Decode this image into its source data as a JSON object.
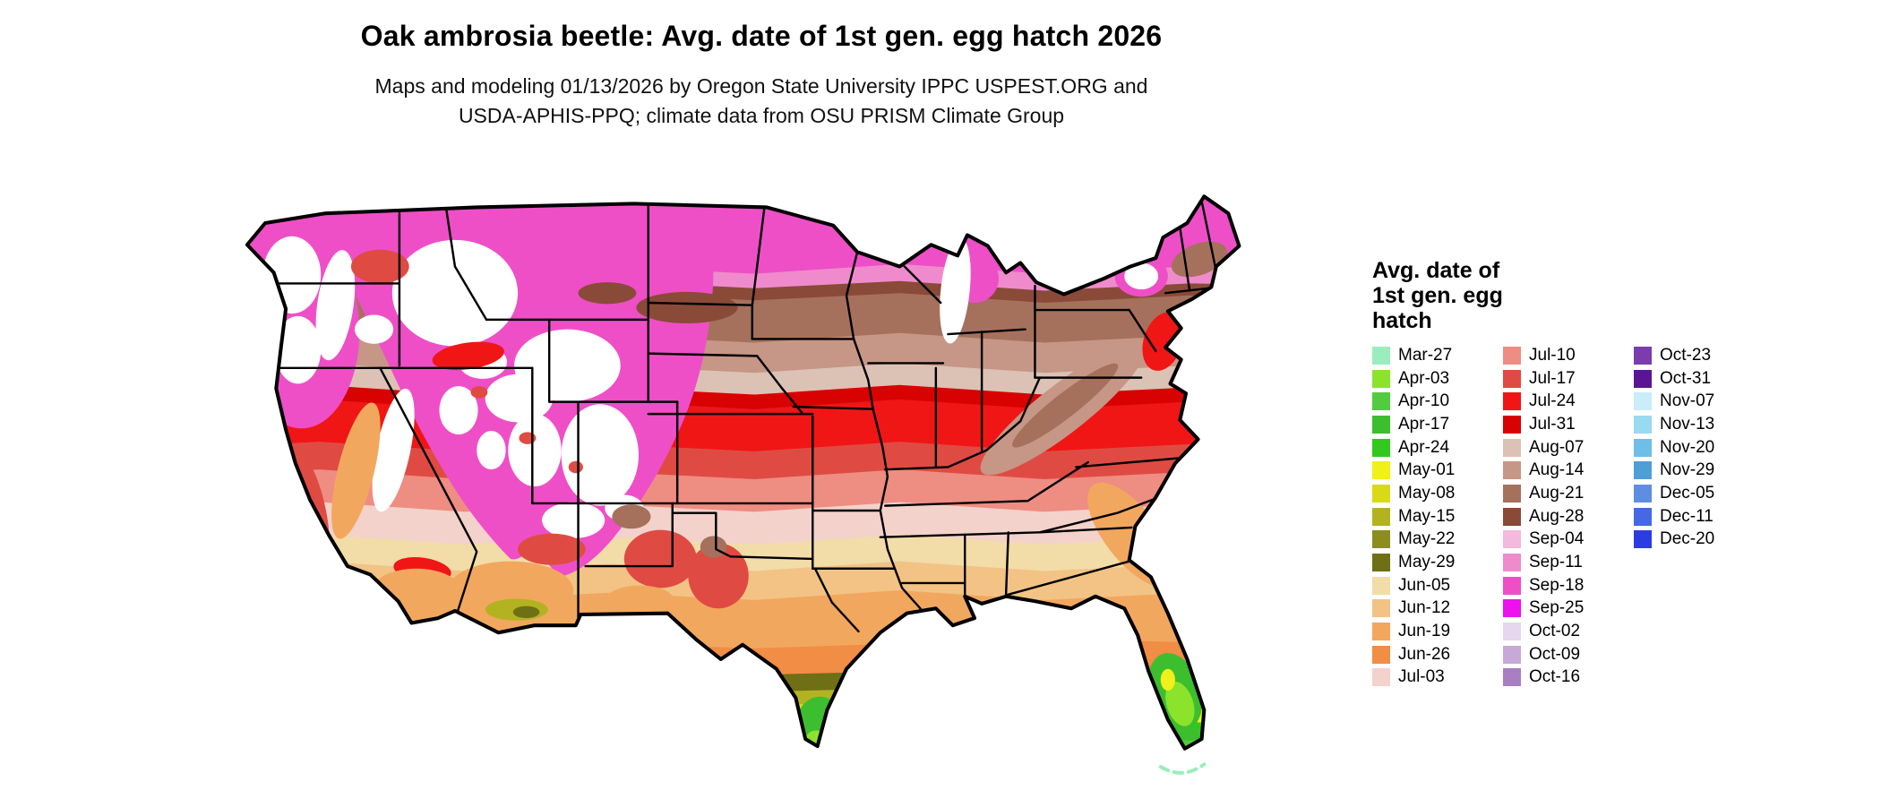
{
  "title": "Oak ambrosia beetle: Avg. date of 1st gen. egg hatch 2026",
  "subtitle": {
    "line1": "Maps and modeling 01/13/2026 by Oregon State University IPPC USPEST.ORG and",
    "line2": "USDA-APHIS-PPQ; climate data from OSU PRISM Climate Group"
  },
  "legend": {
    "title": "Avg. date of 1st gen. egg hatch",
    "columns": [
      [
        {
          "label": "Mar-27",
          "color": "#9BEDBE"
        },
        {
          "label": "Apr-03",
          "color": "#8CE32C"
        },
        {
          "label": "Apr-10",
          "color": "#52CB41"
        },
        {
          "label": "Apr-17",
          "color": "#3DBE2F"
        },
        {
          "label": "Apr-24",
          "color": "#33C81F"
        },
        {
          "label": "May-01",
          "color": "#F0F01A"
        },
        {
          "label": "May-08",
          "color": "#D9D915"
        },
        {
          "label": "May-15",
          "color": "#B3B321"
        },
        {
          "label": "May-22",
          "color": "#8D8D1E"
        },
        {
          "label": "May-29",
          "color": "#6F6F15"
        },
        {
          "label": "Jun-05",
          "color": "#F2DCA8"
        },
        {
          "label": "Jun-12",
          "color": "#F2C384"
        },
        {
          "label": "Jun-19",
          "color": "#F2A75F"
        },
        {
          "label": "Jun-26",
          "color": "#F18D44"
        },
        {
          "label": "Jul-03",
          "color": "#F3D2CB"
        }
      ],
      [
        {
          "label": "Jul-10",
          "color": "#EE8D82"
        },
        {
          "label": "Jul-17",
          "color": "#DF4B43"
        },
        {
          "label": "Jul-24",
          "color": "#F01616"
        },
        {
          "label": "Jul-31",
          "color": "#D80202"
        },
        {
          "label": "Aug-07",
          "color": "#DCC2B5"
        },
        {
          "label": "Aug-14",
          "color": "#C69686"
        },
        {
          "label": "Aug-21",
          "color": "#A5715C"
        },
        {
          "label": "Aug-28",
          "color": "#8A4A38"
        },
        {
          "label": "Sep-04",
          "color": "#F4B9DC"
        },
        {
          "label": "Sep-11",
          "color": "#EF8BCD"
        },
        {
          "label": "Sep-18",
          "color": "#EE4FC7"
        },
        {
          "label": "Sep-25",
          "color": "#ED12ED"
        },
        {
          "label": "Oct-02",
          "color": "#E6D6EE"
        },
        {
          "label": "Oct-09",
          "color": "#C8A8D8"
        },
        {
          "label": "Oct-16",
          "color": "#AA7EC2"
        }
      ],
      [
        {
          "label": "Oct-23",
          "color": "#7B3DAE"
        },
        {
          "label": "Oct-31",
          "color": "#5B1592"
        },
        {
          "label": "Nov-07",
          "color": "#C9EDF9"
        },
        {
          "label": "Nov-13",
          "color": "#98DAEF"
        },
        {
          "label": "Nov-20",
          "color": "#6FBEE6"
        },
        {
          "label": "Nov-29",
          "color": "#4F9ED6"
        },
        {
          "label": "Dec-05",
          "color": "#5E8EE2"
        },
        {
          "label": "Dec-11",
          "color": "#4569E2"
        },
        {
          "label": "Dec-20",
          "color": "#2B3DE2"
        }
      ]
    ]
  },
  "map": {
    "region": "Continental United States",
    "no_data_color": "#FFFFFF",
    "outline_color": "#000000",
    "background_color": "#FFFFFF"
  }
}
